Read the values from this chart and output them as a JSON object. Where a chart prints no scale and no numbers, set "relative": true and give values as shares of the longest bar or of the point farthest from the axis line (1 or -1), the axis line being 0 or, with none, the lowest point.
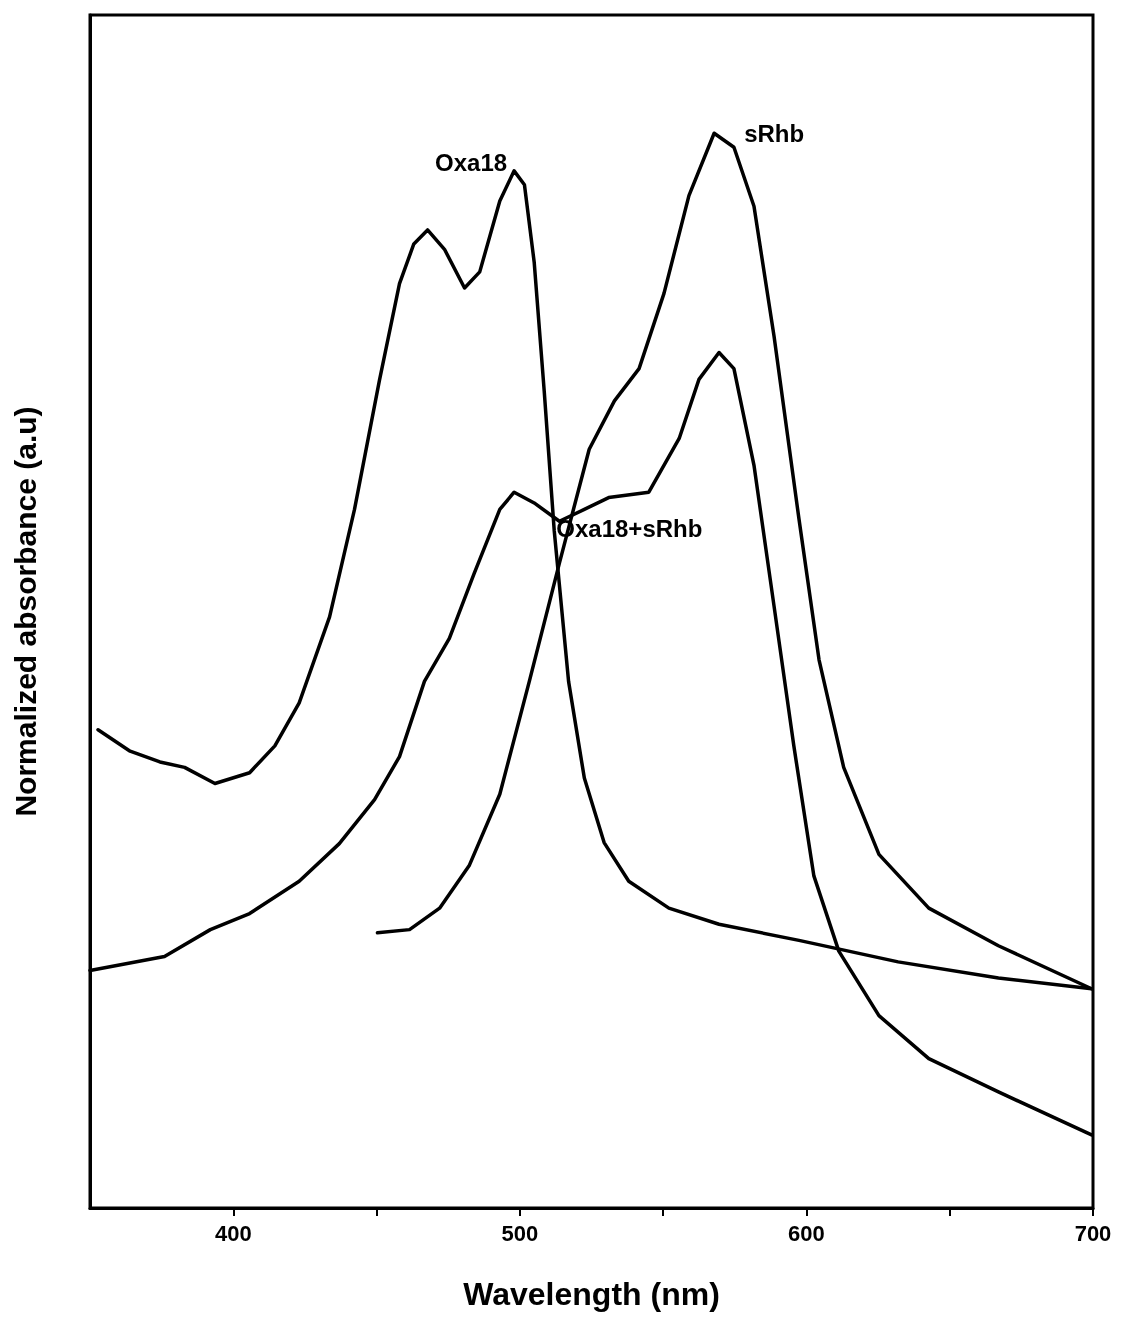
{
  "chart_data": {
    "type": "line",
    "relative": true,
    "xlabel": "Wavelength (nm)",
    "ylabel": "Normalized absorbance (a.u)",
    "xlim": [
      350,
      700
    ],
    "xticks": [
      400,
      {
        "value": 450,
        "label": null
      },
      500,
      {
        "value": 550,
        "label": null
      },
      600,
      {
        "value": 650,
        "label": null
      },
      700
    ],
    "grid": false,
    "legend": false,
    "line_style": "solid",
    "series": [
      {
        "name": "Oxa18",
        "color": "#000000",
        "x": [
          352.8,
          364,
          374.4,
          383,
          393.6,
          405.7,
          414.5,
          423,
          433.6,
          442.3,
          451,
          458,
          463,
          467.8,
          473.7,
          480.7,
          486,
          493,
          498,
          501.6,
          505,
          508.5,
          512,
          517,
          522.5,
          529.4,
          538,
          552,
          569.5,
          597.4,
          632,
          667,
          699.5
        ],
        "values": [
          0.445,
          0.425,
          0.415,
          0.41,
          0.395,
          0.405,
          0.43,
          0.47,
          0.55,
          0.65,
          0.77,
          0.86,
          0.897,
          0.91,
          0.892,
          0.856,
          0.871,
          0.937,
          0.965,
          0.952,
          0.88,
          0.76,
          0.63,
          0.49,
          0.4,
          0.34,
          0.304,
          0.279,
          0.264,
          0.249,
          0.229,
          0.214,
          0.204
        ]
      },
      {
        "name": "sRhb",
        "color": "#000000",
        "x": [
          450.3,
          461.5,
          472,
          482.4,
          493,
          503.3,
          513.8,
          524.2,
          533,
          541.6,
          550.3,
          559,
          567.8,
          574.7,
          581.7,
          588.7,
          597.4,
          604.4,
          613,
          625.3,
          642.7,
          667,
          699.5
        ],
        "values": [
          0.256,
          0.259,
          0.279,
          0.319,
          0.385,
          0.49,
          0.6,
          0.706,
          0.751,
          0.781,
          0.851,
          0.942,
          1,
          0.987,
          0.932,
          0.811,
          0.641,
          0.51,
          0.41,
          0.329,
          0.279,
          0.244,
          0.204
        ]
      },
      {
        "name": "Oxa18+sRhb",
        "color": "#000000",
        "x": [
          350,
          376,
          392,
          405.7,
          423,
          437,
          449.3,
          458,
          466.7,
          475.4,
          484,
          493,
          498,
          505,
          513.8,
          522.5,
          531,
          545,
          555.6,
          562.5,
          569.5,
          574.7,
          581.7,
          588.7,
          595.6,
          602.6,
          611.3,
          625.3,
          642.7,
          667,
          699.5
        ],
        "values": [
          0.221,
          0.234,
          0.259,
          0.274,
          0.304,
          0.339,
          0.38,
          0.42,
          0.49,
          0.53,
          0.59,
          0.65,
          0.666,
          0.656,
          0.639,
          0.65,
          0.661,
          0.666,
          0.716,
          0.771,
          0.796,
          0.781,
          0.691,
          0.56,
          0.43,
          0.309,
          0.239,
          0.179,
          0.139,
          0.108,
          0.068
        ]
      }
    ]
  }
}
